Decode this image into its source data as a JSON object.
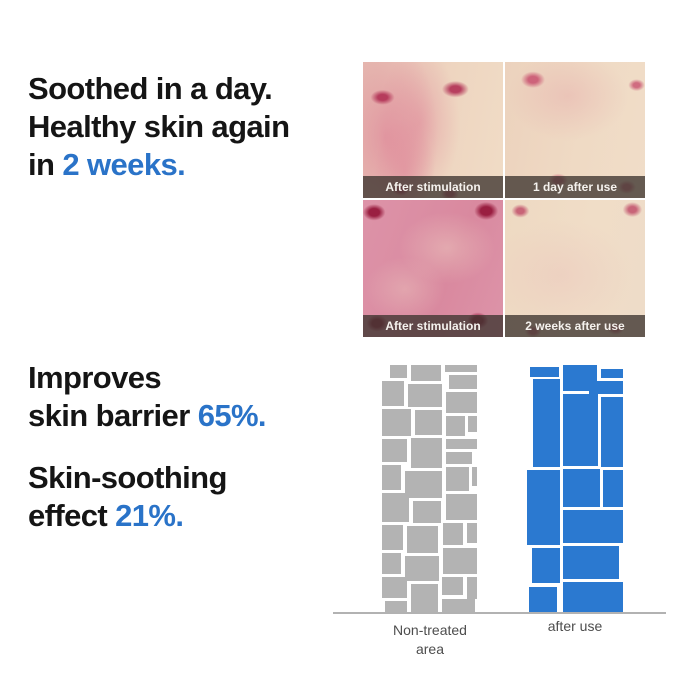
{
  "page": {
    "background": "#ffffff",
    "accent_color": "#2a73c8",
    "text_color": "#151515"
  },
  "headline": {
    "line1": "Soothed in a day.",
    "line2": "Healthy skin again",
    "line3_prefix": "in ",
    "line3_accent": "2 weeks."
  },
  "stats": {
    "stat1_line1": "Improves",
    "stat1_line2_prefix": "skin barrier ",
    "stat1_line2_accent": "65%.",
    "stat2_line1": "Skin-soothing",
    "stat2_line2_prefix": "effect ",
    "stat2_line2_accent": "21%."
  },
  "photo_panel": {
    "cells": [
      {
        "label": "After stimulation"
      },
      {
        "label": "1 day after use"
      },
      {
        "label": "After stimulation"
      },
      {
        "label": "2 weeks after use"
      }
    ]
  },
  "chart_data": {
    "type": "comparison-mosaic",
    "description": "Illustration of skin barrier structure: fragmented small gray blocks for non-treated skin vs large cohesive blue blocks after use",
    "stat_improve_barrier_pct": 65,
    "stat_soothing_pct": 21,
    "legend_position": "below-columns",
    "columns": [
      {
        "label_lines": [
          "Non-treated",
          "area"
        ],
        "color": "#b3b3b3",
        "blocks": [
          [
            8,
            0,
            17,
            13
          ],
          [
            29,
            0,
            30,
            16
          ],
          [
            63,
            0,
            32,
            7
          ],
          [
            67,
            10,
            28,
            14
          ],
          [
            0,
            16,
            22,
            25
          ],
          [
            26,
            19,
            34,
            23
          ],
          [
            64,
            27,
            31,
            21
          ],
          [
            0,
            44,
            29,
            27
          ],
          [
            33,
            45,
            27,
            25
          ],
          [
            64,
            51,
            19,
            20
          ],
          [
            86,
            51,
            9,
            16
          ],
          [
            0,
            74,
            25,
            23
          ],
          [
            29,
            73,
            31,
            30
          ],
          [
            64,
            74,
            31,
            10
          ],
          [
            64,
            87,
            26,
            12
          ],
          [
            0,
            100,
            19,
            25
          ],
          [
            23,
            106,
            37,
            27
          ],
          [
            64,
            102,
            23,
            24
          ],
          [
            90,
            102,
            5,
            19
          ],
          [
            0,
            128,
            27,
            29
          ],
          [
            31,
            136,
            28,
            22
          ],
          [
            64,
            129,
            31,
            26
          ],
          [
            0,
            160,
            21,
            25
          ],
          [
            25,
            161,
            31,
            27
          ],
          [
            61,
            158,
            20,
            22
          ],
          [
            85,
            158,
            10,
            20
          ],
          [
            0,
            188,
            19,
            21
          ],
          [
            23,
            191,
            34,
            25
          ],
          [
            61,
            183,
            34,
            26
          ],
          [
            0,
            212,
            25,
            21
          ],
          [
            29,
            219,
            27,
            29
          ],
          [
            60,
            212,
            21,
            18
          ],
          [
            85,
            212,
            10,
            22
          ],
          [
            3,
            236,
            22,
            12
          ],
          [
            60,
            234,
            33,
            14
          ]
        ]
      },
      {
        "label_lines": [
          "after use"
        ],
        "color": "#2b79d0",
        "blocks": [
          [
            3,
            2,
            29,
            10
          ],
          [
            36,
            0,
            34,
            26
          ],
          [
            74,
            4,
            22,
            9
          ],
          [
            62,
            16,
            34,
            13
          ],
          [
            6,
            14,
            27,
            88
          ],
          [
            36,
            29,
            35,
            72
          ],
          [
            74,
            32,
            22,
            70
          ],
          [
            36,
            104,
            37,
            38
          ],
          [
            76,
            105,
            20,
            37
          ],
          [
            0,
            105,
            33,
            75
          ],
          [
            36,
            145,
            60,
            33
          ],
          [
            36,
            181,
            56,
            33
          ],
          [
            5,
            183,
            28,
            35
          ],
          [
            2,
            222,
            28,
            26
          ],
          [
            36,
            217,
            60,
            31
          ]
        ]
      }
    ]
  }
}
